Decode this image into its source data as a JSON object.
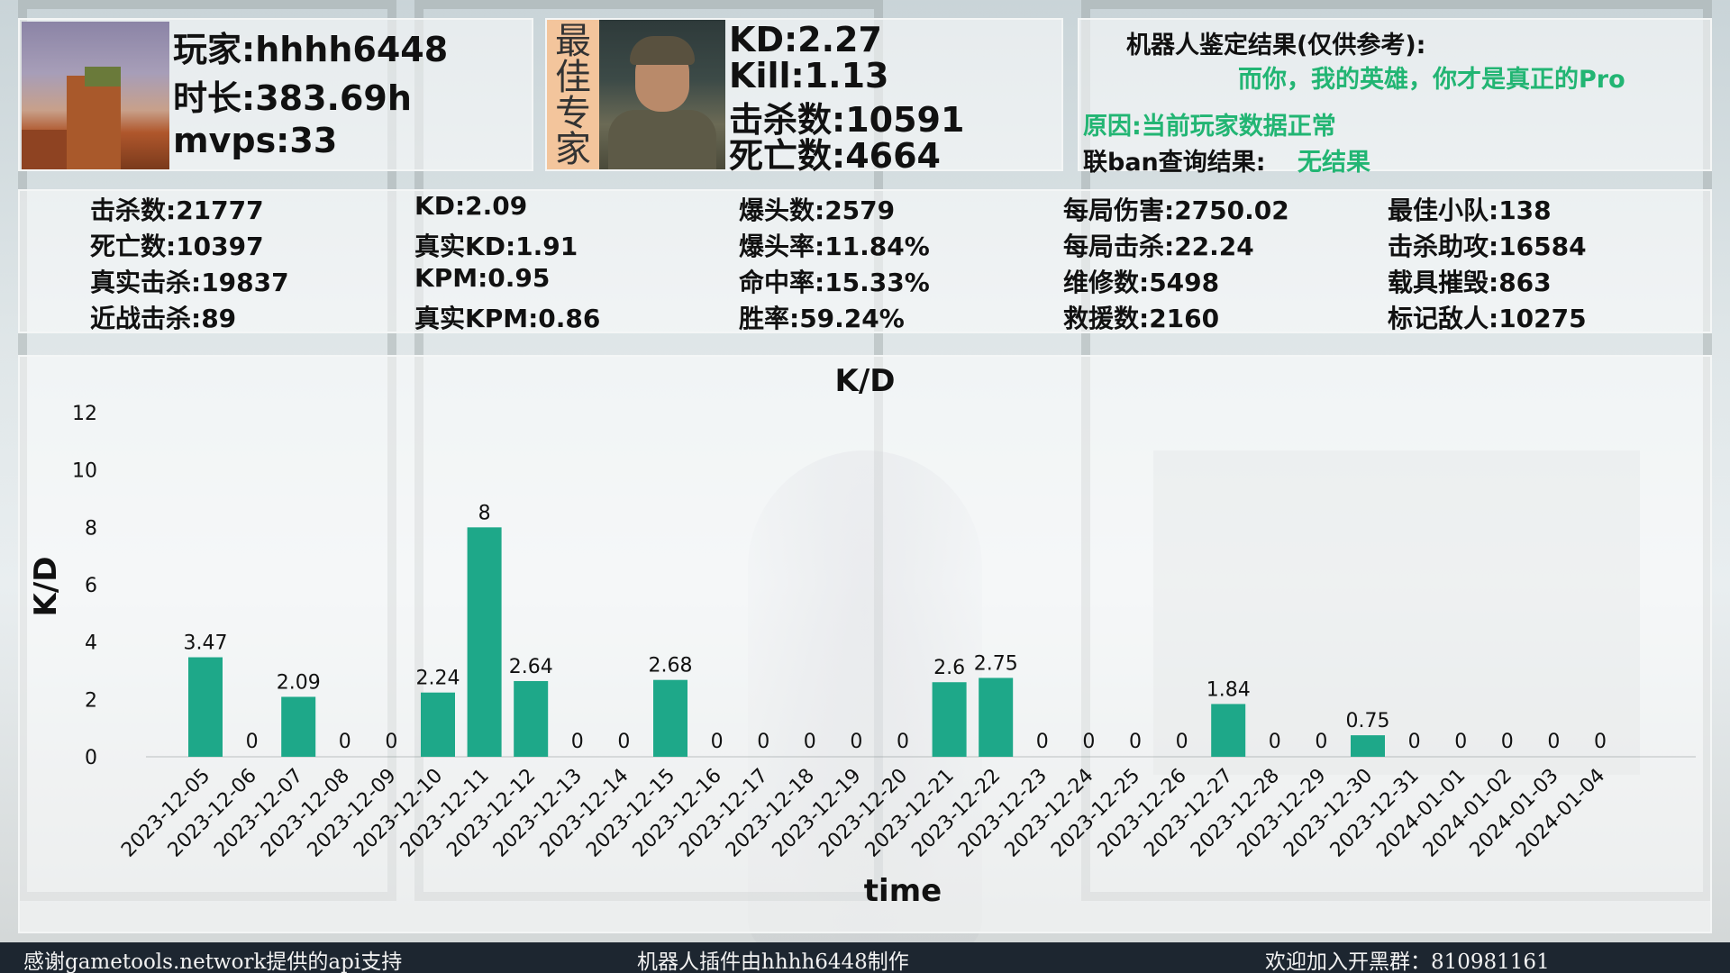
{
  "player": {
    "name_text": "玩家:hhhh6448",
    "playtime_text": "时长:383.69h",
    "mvps_text": "mvps:33"
  },
  "specialist": {
    "label": "最佳专家",
    "kd_text": "KD:2.27",
    "kill_text": "Kill:1.13",
    "kills_text": "击杀数:10591",
    "deaths_text": "死亡数:4664"
  },
  "verdict": {
    "title": "机器人鉴定结果(仅供参考):",
    "message": "而你，我的英雄，你才是真正的Pro",
    "reason": "原因:当前玩家数据正常",
    "ban_label": "联ban查询结果:",
    "ban_result": "无结果",
    "accent_color": "#22b573"
  },
  "stats": [
    [
      "击杀数:21777",
      "死亡数:10397",
      "真实击杀:19837",
      "近战击杀:89"
    ],
    [
      "KD:2.09",
      "真实KD:1.91",
      "KPM:0.95",
      "真实KPM:0.86"
    ],
    [
      "爆头数:2579",
      "爆头率:11.84%",
      "命中率:15.33%",
      "胜率:59.24%"
    ],
    [
      "每局伤害:2750.02",
      "每局击杀:22.24",
      "维修数:5498",
      "救援数:2160"
    ],
    [
      "最佳小队:138",
      "击杀助攻:16584",
      "载具摧毁:863",
      "标记敌人:10275"
    ]
  ],
  "chart_data": {
    "type": "bar",
    "title": "K/D",
    "xlabel": "time",
    "ylabel": "K/D",
    "ylim": [
      0,
      12
    ],
    "yticks": [
      0,
      2,
      4,
      6,
      8,
      10,
      12
    ],
    "bar_color": "#1ea889",
    "grid": false,
    "categories": [
      "2023-12-05",
      "2023-12-06",
      "2023-12-07",
      "2023-12-08",
      "2023-12-09",
      "2023-12-10",
      "2023-12-11",
      "2023-12-12",
      "2023-12-13",
      "2023-12-14",
      "2023-12-15",
      "2023-12-16",
      "2023-12-17",
      "2023-12-18",
      "2023-12-19",
      "2023-12-20",
      "2023-12-21",
      "2023-12-22",
      "2023-12-23",
      "2023-12-24",
      "2023-12-25",
      "2023-12-26",
      "2023-12-27",
      "2023-12-28",
      "2023-12-29",
      "2023-12-30",
      "2023-12-31",
      "2024-01-01",
      "2024-01-02",
      "2024-01-03",
      "2024-01-04"
    ],
    "values": [
      3.47,
      0,
      2.09,
      0,
      0,
      2.24,
      8,
      2.64,
      0,
      0,
      2.68,
      0,
      0,
      0,
      0,
      0,
      2.6,
      2.75,
      0,
      0,
      0,
      0,
      1.84,
      0,
      0,
      0.75,
      0,
      0,
      0,
      0,
      0
    ],
    "labels": [
      "3.47",
      "0",
      "2.09",
      "0",
      "0",
      "2.24",
      "8",
      "2.64",
      "0",
      "0",
      "2.68",
      "0",
      "0",
      "0",
      "0",
      "0",
      "2.6",
      "2.75",
      "0",
      "0",
      "0",
      "0",
      "1.84",
      "0",
      "0",
      "0.75",
      "0",
      "0",
      "0",
      "0",
      "0"
    ]
  },
  "footer": {
    "left": "感谢gametools.network提供的api支持",
    "center": "机器人插件由hhhh6448制作",
    "right": "欢迎加入开黑群：810981161"
  }
}
